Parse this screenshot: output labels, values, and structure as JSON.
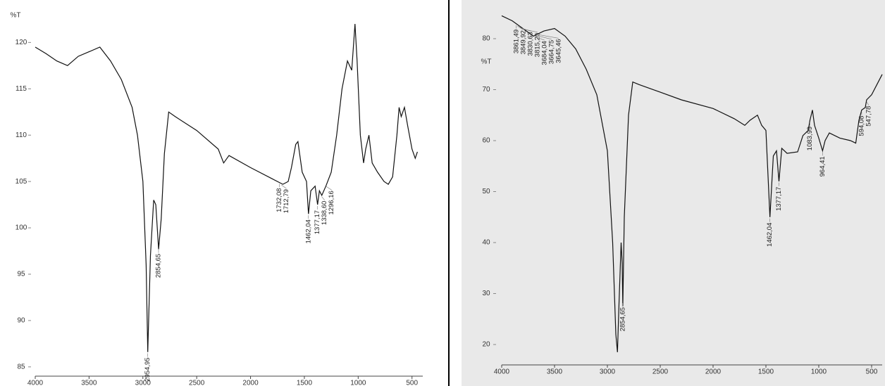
{
  "chart_data": [
    {
      "type": "line",
      "y_label": "%T",
      "xlim": [
        4000,
        400
      ],
      "xticks": [
        4000,
        3500,
        3000,
        2500,
        2000,
        1500,
        1000,
        500
      ],
      "ylim": [
        84,
        122
      ],
      "yticks": [
        85,
        90,
        95,
        100,
        105,
        110,
        115,
        120
      ],
      "series": [
        {
          "color": "#111111",
          "x": [
            4000,
            3900,
            3800,
            3700,
            3600,
            3500,
            3400,
            3300,
            3200,
            3100,
            3050,
            3000,
            2970,
            2955,
            2930,
            2900,
            2880,
            2854,
            2830,
            2800,
            2760,
            2700,
            2500,
            2300,
            2250,
            2200,
            2000,
            1800,
            1700,
            1650,
            1620,
            1580,
            1560,
            1520,
            1480,
            1462,
            1440,
            1400,
            1377,
            1360,
            1338,
            1300,
            1250,
            1200,
            1150,
            1100,
            1060,
            1030,
            1010,
            980,
            950,
            930,
            900,
            870,
            820,
            760,
            720,
            680,
            640,
            620,
            600,
            570,
            540,
            500,
            470,
            450
          ],
          "values": [
            119.5,
            118.8,
            118,
            117.5,
            118.5,
            119,
            119.5,
            118,
            116,
            113,
            110,
            105,
            96,
            86.6,
            97,
            103,
            102.5,
            97.7,
            101,
            108,
            112.5,
            112,
            110.5,
            108.5,
            107,
            107.8,
            106.5,
            105.3,
            104.7,
            105,
            106.5,
            109,
            109.3,
            106,
            105,
            101.5,
            104,
            104.5,
            102.5,
            104,
            103.5,
            104.5,
            106,
            110,
            115,
            118,
            117,
            122,
            118,
            110,
            107,
            108.5,
            110,
            107,
            106,
            105,
            104.7,
            105.5,
            110,
            113,
            112,
            113,
            111,
            108.5,
            107.5,
            108.2
          ]
        }
      ],
      "annotations": [
        {
          "x": 2954.95,
          "label": "2954,95"
        },
        {
          "x": 2854.65,
          "label": "2854,65"
        },
        {
          "x": 1732.08,
          "label": "1732,08"
        },
        {
          "x": 1712.79,
          "label": "1712,79"
        },
        {
          "x": 1462.04,
          "label": "1462,04"
        },
        {
          "x": 1377.17,
          "label": "1377,17"
        },
        {
          "x": 1338.6,
          "label": "1338,60"
        },
        {
          "x": 1296.16,
          "label": "1296,16"
        }
      ]
    },
    {
      "type": "line",
      "y_label": "%T",
      "xlim": [
        4000,
        400
      ],
      "xticks": [
        4000,
        3500,
        3000,
        2500,
        2000,
        1500,
        1000,
        500
      ],
      "ylim": [
        16,
        86
      ],
      "yticks": [
        20,
        30,
        40,
        50,
        60,
        70,
        80
      ],
      "series": [
        {
          "color": "#111111",
          "x": [
            4000,
            3900,
            3800,
            3700,
            3600,
            3500,
            3400,
            3300,
            3200,
            3100,
            3000,
            2950,
            2920,
            2905,
            2890,
            2870,
            2860,
            2854,
            2840,
            2800,
            2760,
            2700,
            2500,
            2300,
            2000,
            1800,
            1700,
            1650,
            1580,
            1540,
            1500,
            1462,
            1430,
            1400,
            1377,
            1350,
            1300,
            1200,
            1150,
            1100,
            1083,
            1060,
            1040,
            1000,
            964,
            940,
            900,
            800,
            700,
            650,
            620,
            594,
            560,
            547,
            500,
            450,
            400
          ],
          "values": [
            84.5,
            83.5,
            82,
            80.5,
            81.5,
            82,
            80.5,
            78,
            74,
            69,
            58,
            40,
            22,
            18.5,
            28,
            40,
            36,
            27.5,
            45,
            65,
            71.5,
            71,
            69.5,
            68,
            66.3,
            64.3,
            63,
            64,
            65,
            63,
            62,
            45,
            57,
            58,
            52,
            58.5,
            57.5,
            57.8,
            61,
            62,
            64,
            66,
            63,
            60.5,
            58,
            60,
            61.5,
            60.5,
            60,
            59.5,
            64,
            66,
            66.5,
            68,
            69,
            71,
            73
          ]
        }
      ],
      "annotations": [
        {
          "x": 3861.49,
          "label": "3861,49"
        },
        {
          "x": 3849.92,
          "label": "3849,92"
        },
        {
          "x": 3830.63,
          "label": "3830,63"
        },
        {
          "x": 3815.2,
          "label": "3815,20"
        },
        {
          "x": 3684.04,
          "label": "3684,04"
        },
        {
          "x": 3664.75,
          "label": "3664,75"
        },
        {
          "x": 3645.46,
          "label": "3645,46"
        },
        {
          "x": 2854.65,
          "label": "2854,65"
        },
        {
          "x": 1462.04,
          "label": "1462,04"
        },
        {
          "x": 1377.17,
          "label": "1377,17"
        },
        {
          "x": 1083.99,
          "label": "1083,99"
        },
        {
          "x": 964.41,
          "label": "964,41"
        },
        {
          "x": 594.08,
          "label": "594,08"
        },
        {
          "x": 547.78,
          "label": "547,78"
        }
      ]
    }
  ]
}
